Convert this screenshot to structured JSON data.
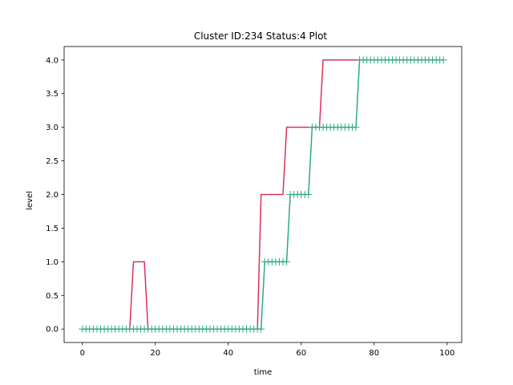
{
  "chart_data": {
    "type": "line",
    "title": "Cluster ID:234 Status:4 Plot",
    "xlabel": "time",
    "ylabel": "level",
    "xlim": [
      -5,
      104
    ],
    "ylim": [
      -0.2,
      4.2
    ],
    "xticks": [
      0,
      20,
      40,
      60,
      80,
      100
    ],
    "yticks": [
      0.0,
      0.5,
      1.0,
      1.5,
      2.0,
      2.5,
      3.0,
      3.5,
      4.0
    ],
    "xtick_labels": [
      "0",
      "20",
      "40",
      "60",
      "80",
      "100"
    ],
    "ytick_labels": [
      "0.0",
      "0.5",
      "1.0",
      "1.5",
      "2.0",
      "2.5",
      "3.0",
      "3.5",
      "4.0"
    ],
    "grid": false,
    "series": [
      {
        "color": "#dc3258",
        "marker": "none",
        "x": [
          0,
          13,
          14,
          17,
          18,
          48,
          49,
          55,
          56,
          65,
          66,
          99
        ],
        "y": [
          0,
          0,
          1,
          1,
          0,
          0,
          2,
          2,
          3,
          3,
          4,
          4
        ]
      },
      {
        "color": "#2ea987",
        "marker": "+",
        "x": [
          0,
          49,
          50,
          56,
          57,
          62,
          63,
          75,
          76,
          99
        ],
        "y": [
          0,
          0,
          1,
          1,
          2,
          2,
          3,
          3,
          4,
          4
        ]
      }
    ]
  }
}
